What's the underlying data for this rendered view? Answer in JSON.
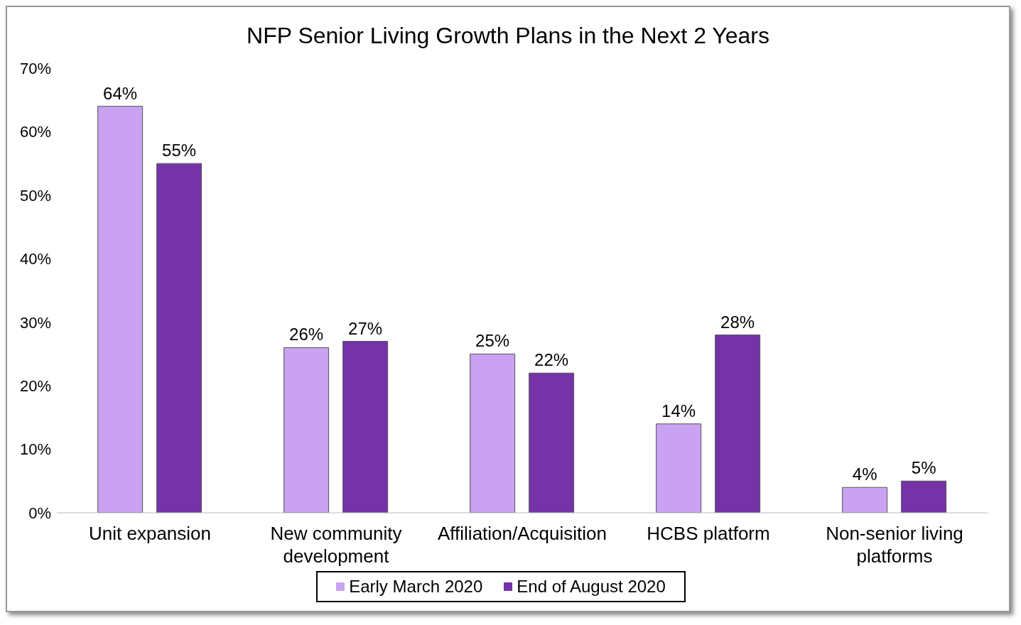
{
  "chart_data": {
    "type": "bar",
    "title": "NFP Senior Living Growth Plans in the Next 2 Years",
    "categories": [
      "Unit expansion",
      "New community development",
      "Affiliation/Acquisition",
      "HCBS platform",
      "Non-senior living platforms"
    ],
    "series": [
      {
        "name": "Early March 2020",
        "color": "#c9a2f2",
        "values": [
          64,
          26,
          25,
          14,
          4
        ],
        "value_labels": [
          "64%",
          "26%",
          "25%",
          "14%",
          "4%"
        ]
      },
      {
        "name": "End of August 2020",
        "color": "#7434a8",
        "values": [
          55,
          27,
          22,
          28,
          5
        ],
        "value_labels": [
          "55%",
          "27%",
          "22%",
          "28%",
          "5%"
        ]
      }
    ],
    "ylim": [
      0,
      70
    ],
    "yticks": [
      {
        "value": 0,
        "label": "0%"
      },
      {
        "value": 10,
        "label": "10%"
      },
      {
        "value": 20,
        "label": "20%"
      },
      {
        "value": 30,
        "label": "30%"
      },
      {
        "value": 40,
        "label": "40%"
      },
      {
        "value": 50,
        "label": "50%"
      },
      {
        "value": 60,
        "label": "60%"
      },
      {
        "value": 70,
        "label": "70%"
      }
    ],
    "grid": false,
    "legend": "bottom"
  }
}
